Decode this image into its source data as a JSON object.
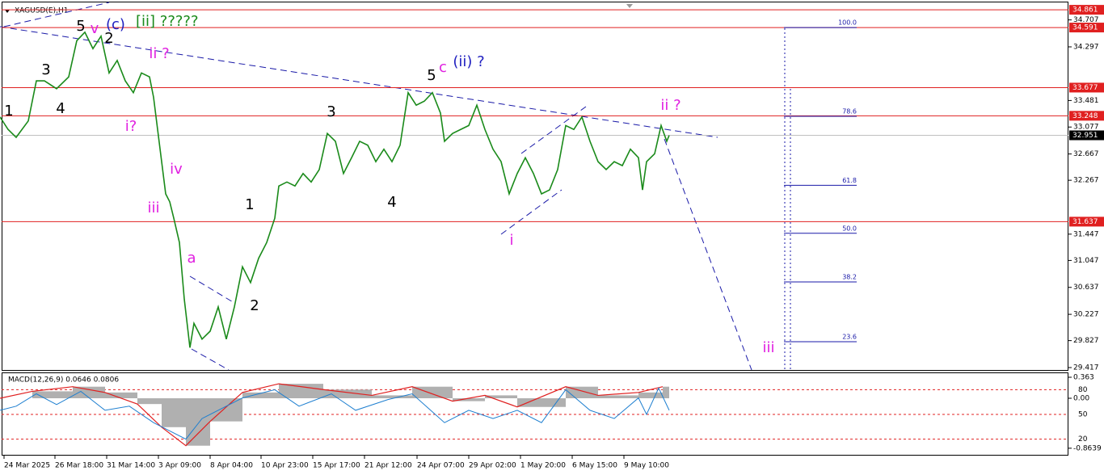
{
  "chart_data": {
    "type": "line",
    "title": "XAGUSD(E),H1",
    "xlim": [
      0,
      1322
    ],
    "ylim": [
      29.38,
      35.01
    ],
    "yticks": [
      34.707,
      34.297,
      33.481,
      33.077,
      32.667,
      32.267,
      31.447,
      31.047,
      30.637,
      30.227,
      29.827,
      29.417
    ],
    "xticks": [
      {
        "value": 5,
        "label": "24 Mar 2025"
      },
      {
        "value": 68,
        "label": "26 Mar 18:00"
      },
      {
        "value": 132,
        "label": "31 Mar 14:00"
      },
      {
        "value": 196,
        "label": "3 Apr 09:00"
      },
      {
        "value": 260,
        "label": "8 Apr 04:00"
      },
      {
        "value": 323,
        "label": "10 Apr 23:00"
      },
      {
        "value": 387,
        "label": "15 Apr 17:00"
      },
      {
        "value": 451,
        "label": "21 Apr 12:00"
      },
      {
        "value": 516,
        "label": "24 Apr 07:00"
      },
      {
        "value": 580,
        "label": "29 Apr 02:00"
      },
      {
        "value": 644,
        "label": "1 May 20:00"
      },
      {
        "value": 708,
        "label": "6 May 15:00"
      },
      {
        "value": 772,
        "label": "9 May 10:00"
      }
    ],
    "series": [
      {
        "name": "XAGUSD",
        "color": "#1a8a1a",
        "x": [
          0,
          10,
          20,
          35,
          45,
          55,
          70,
          85,
          95,
          105,
          115,
          125,
          135,
          145,
          155,
          165,
          175,
          185,
          190,
          195,
          200,
          205,
          210,
          215,
          222,
          228,
          235,
          240,
          250,
          260,
          270,
          280,
          290,
          300,
          310,
          320,
          330,
          340,
          345,
          355,
          365,
          375,
          385,
          395,
          405,
          415,
          425,
          435,
          445,
          455,
          465,
          475,
          485,
          495,
          505,
          515,
          525,
          535,
          545,
          550,
          560,
          570,
          580,
          590,
          600,
          610,
          620,
          630,
          640,
          650,
          660,
          670,
          680,
          690,
          700,
          710,
          720,
          730,
          740,
          750,
          760,
          770,
          780,
          790,
          795,
          800,
          810,
          818,
          825,
          828
        ],
        "values": [
          33.23,
          33.04,
          32.92,
          33.17,
          33.78,
          33.78,
          33.66,
          33.84,
          34.39,
          34.52,
          34.27,
          34.46,
          33.9,
          34.09,
          33.78,
          33.6,
          33.9,
          33.84,
          33.53,
          33.04,
          32.55,
          32.06,
          31.94,
          31.69,
          31.32,
          30.46,
          29.72,
          30.09,
          29.85,
          29.97,
          30.34,
          29.85,
          30.34,
          30.95,
          30.71,
          31.08,
          31.32,
          31.69,
          32.18,
          32.24,
          32.18,
          32.37,
          32.24,
          32.43,
          32.98,
          32.86,
          32.37,
          32.61,
          32.86,
          32.8,
          32.55,
          32.74,
          32.55,
          32.8,
          33.6,
          33.41,
          33.47,
          33.6,
          33.29,
          32.86,
          32.98,
          33.04,
          33.1,
          33.41,
          33.04,
          32.74,
          32.55,
          32.06,
          32.37,
          32.61,
          32.37,
          32.06,
          32.12,
          32.43,
          33.1,
          33.04,
          33.23,
          32.86,
          32.55,
          32.43,
          32.55,
          32.49,
          32.74,
          32.61,
          32.12,
          32.55,
          32.67,
          33.1,
          32.86,
          32.95
        ]
      }
    ],
    "levels": [
      34.861,
      34.591,
      33.677,
      33.248,
      31.637
    ],
    "current_price": 32.951,
    "fib_levels": [
      {
        "label": "100.0",
        "price": 34.591
      },
      {
        "label": "78.6",
        "price": 33.24
      },
      {
        "label": "61.8",
        "price": 32.19
      },
      {
        "label": "50.0",
        "price": 31.46
      },
      {
        "label": "38.2",
        "price": 30.72
      },
      {
        "label": "23.6",
        "price": 29.81
      }
    ],
    "annotations": [
      {
        "text": "5",
        "color": "#000000"
      },
      {
        "text": "v",
        "color": "#e020e0"
      },
      {
        "text": "(c)",
        "color": "#2020c0"
      },
      {
        "text": "[ii] ?????",
        "color": "#1a8a1a"
      },
      {
        "text": "2",
        "color": "#000000"
      },
      {
        "text": "3",
        "color": "#000000"
      },
      {
        "text": "4",
        "color": "#000000"
      },
      {
        "text": "1",
        "color": "#000000"
      },
      {
        "text": "ii ?",
        "color": "#e020e0"
      },
      {
        "text": "i?",
        "color": "#e020e0"
      },
      {
        "text": "iv",
        "color": "#e020e0"
      },
      {
        "text": "iii",
        "color": "#e020e0"
      },
      {
        "text": "a",
        "color": "#e020e0"
      },
      {
        "text": "1",
        "color": "#000000"
      },
      {
        "text": "2",
        "color": "#000000"
      },
      {
        "text": "3",
        "color": "#000000"
      },
      {
        "text": "4",
        "color": "#000000"
      },
      {
        "text": "5",
        "color": "#000000"
      },
      {
        "text": "c",
        "color": "#e020e0"
      },
      {
        "text": "(ii) ?",
        "color": "#2020c0"
      },
      {
        "text": "ii ?",
        "color": "#e020e0"
      },
      {
        "text": "i",
        "color": "#e020e0"
      },
      {
        "text": "iii",
        "color": "#e020e0"
      }
    ],
    "indicator": {
      "title": "MACD(12,26,9) 0.0646 0.0806",
      "macd_ticks": [
        0.363,
        {
          "value": 0,
          "label": "0.00"
        },
        -0.8639
      ],
      "level_ticks": [
        80,
        50,
        20
      ],
      "signal": {
        "color": "#e02020",
        "x": [
          0,
          40,
          90,
          130,
          170,
          200,
          230,
          260,
          300,
          345,
          400,
          460,
          510,
          560,
          600,
          640,
          700,
          740,
          790,
          820
        ],
        "values": [
          0.0,
          0.12,
          0.2,
          0.1,
          -0.1,
          -0.5,
          -0.82,
          -0.4,
          0.1,
          0.25,
          0.15,
          0.05,
          0.2,
          -0.05,
          0.05,
          -0.15,
          0.2,
          0.05,
          0.1,
          0.2
        ]
      },
      "oscillator": {
        "color": "#1e7fd0",
        "x": [
          0,
          20,
          45,
          70,
          100,
          130,
          160,
          190,
          210,
          230,
          250,
          280,
          300,
          340,
          370,
          410,
          440,
          480,
          510,
          550,
          580,
          610,
          640,
          670,
          700,
          730,
          760,
          790,
          800,
          815,
          828
        ],
        "values": [
          55,
          60,
          75,
          62,
          78,
          55,
          60,
          40,
          30,
          20,
          45,
          60,
          70,
          80,
          60,
          75,
          55,
          68,
          75,
          40,
          55,
          45,
          55,
          40,
          80,
          55,
          45,
          70,
          50,
          82,
          55
        ]
      }
    }
  }
}
